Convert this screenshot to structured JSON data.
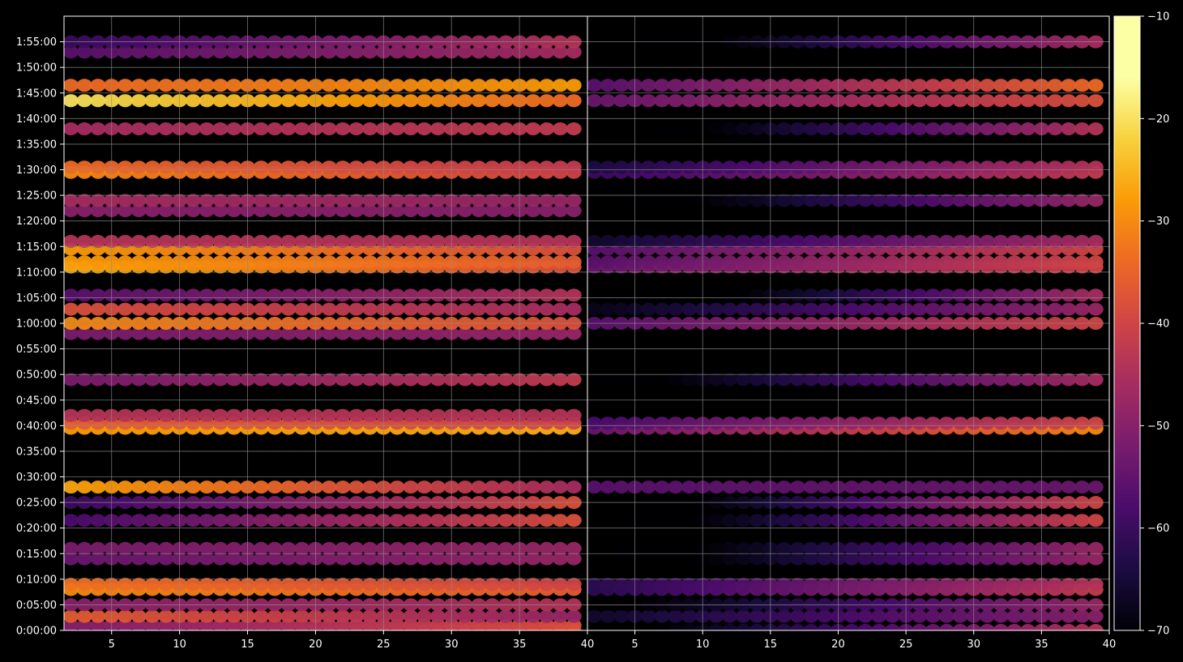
{
  "chart_data": [
    {
      "type": "heatmap",
      "panel": "left",
      "xlim": [
        1.5,
        40
      ],
      "x_ticks": [
        "5",
        "10",
        "15",
        "20",
        "25",
        "30",
        "35",
        "40"
      ],
      "ylim_seconds": [
        0,
        7200
      ],
      "y_ticks": [
        "0:00:00",
        "0:05:00",
        "0:10:00",
        "0:15:00",
        "0:20:00",
        "0:25:00",
        "0:30:00",
        "0:35:00",
        "0:40:00",
        "0:45:00",
        "0:50:00",
        "0:55:00",
        "1:00:00",
        "1:05:00",
        "1:10:00",
        "1:15:00",
        "1:20:00",
        "1:25:00",
        "1:30:00",
        "1:35:00",
        "1:40:00",
        "1:45:00",
        "1:50:00",
        "1:55:00"
      ],
      "grid": true,
      "x_columns": [
        2,
        3,
        4,
        5,
        6,
        7,
        8,
        9,
        10,
        11,
        12,
        13,
        14,
        15,
        16,
        17,
        18,
        19,
        20,
        21,
        22,
        23,
        24,
        25,
        26,
        27,
        28,
        29,
        30,
        31,
        32,
        33,
        34,
        35,
        36,
        37,
        38,
        39
      ],
      "rows": [
        {
          "time": "0:00:00",
          "start": -62,
          "end": -42
        },
        {
          "time": "0:01:00",
          "start": -50,
          "end": -38
        },
        {
          "time": "0:02:45",
          "start": -36,
          "end": -48
        },
        {
          "time": "0:05:00",
          "start": -50,
          "end": -44
        },
        {
          "time": "0:08:00",
          "start": -30,
          "end": -36
        },
        {
          "time": "0:09:00",
          "start": -33,
          "end": -40
        },
        {
          "time": "0:14:00",
          "start": -54,
          "end": -48
        },
        {
          "time": "0:16:00",
          "start": -52,
          "end": -48
        },
        {
          "time": "0:21:30",
          "start": -58,
          "end": -38
        },
        {
          "time": "0:25:00",
          "start": -60,
          "end": -38
        },
        {
          "time": "0:28:00",
          "start": -27,
          "end": -46
        },
        {
          "time": "0:39:30",
          "start": -28,
          "end": -26
        },
        {
          "time": "0:40:30",
          "start": -36,
          "end": -40
        },
        {
          "time": "0:42:00",
          "start": -44,
          "end": -44
        },
        {
          "time": "0:49:00",
          "start": -52,
          "end": -42
        },
        {
          "time": "0:58:00",
          "start": -52,
          "end": -48
        },
        {
          "time": "1:00:00",
          "start": -30,
          "end": -38
        },
        {
          "time": "1:02:45",
          "start": -38,
          "end": -46
        },
        {
          "time": "1:05:30",
          "start": -56,
          "end": -44
        },
        {
          "time": "1:11:00",
          "start": -26,
          "end": -38
        },
        {
          "time": "1:12:00",
          "start": -28,
          "end": -36
        },
        {
          "time": "1:14:30",
          "start": -28,
          "end": -38
        },
        {
          "time": "1:16:00",
          "start": -44,
          "end": -44
        },
        {
          "time": "1:22:00",
          "start": -50,
          "end": -50
        },
        {
          "time": "1:24:00",
          "start": -46,
          "end": -48
        },
        {
          "time": "1:29:30",
          "start": -30,
          "end": -40
        },
        {
          "time": "1:30:30",
          "start": -34,
          "end": -42
        },
        {
          "time": "1:38:00",
          "start": -46,
          "end": -42
        },
        {
          "time": "1:43:30",
          "start": -20,
          "end": -34
        },
        {
          "time": "1:46:30",
          "start": -34,
          "end": -28
        },
        {
          "time": "1:53:00",
          "start": -56,
          "end": -46
        },
        {
          "time": "1:55:00",
          "start": -60,
          "end": -44
        }
      ]
    },
    {
      "type": "heatmap",
      "panel": "right",
      "xlim": [
        1.5,
        40
      ],
      "x_ticks": [
        "40",
        "5",
        "10",
        "15",
        "20",
        "25",
        "30",
        "35",
        "40"
      ],
      "ylim_seconds": [
        0,
        7200
      ],
      "grid": true,
      "x_columns": [
        2,
        3,
        4,
        5,
        6,
        7,
        8,
        9,
        10,
        11,
        12,
        13,
        14,
        15,
        16,
        17,
        18,
        19,
        20,
        21,
        22,
        23,
        24,
        25,
        26,
        27,
        28,
        29,
        30,
        31,
        32,
        33,
        34,
        35,
        36,
        37,
        38,
        39
      ],
      "rows": [
        {
          "time": "0:00:00",
          "start": -74,
          "end": -44
        },
        {
          "time": "0:02:45",
          "start": -66,
          "end": -50
        },
        {
          "time": "0:05:00",
          "start": -72,
          "end": -48
        },
        {
          "time": "0:08:00",
          "start": -62,
          "end": -42
        },
        {
          "time": "0:09:00",
          "start": -62,
          "end": -44
        },
        {
          "time": "0:14:00",
          "start": -76,
          "end": -48
        },
        {
          "time": "0:16:00",
          "start": -76,
          "end": -48
        },
        {
          "time": "0:21:30",
          "start": -78,
          "end": -40
        },
        {
          "time": "0:25:00",
          "start": -78,
          "end": -40
        },
        {
          "time": "0:28:00",
          "start": -56,
          "end": -54
        },
        {
          "time": "0:39:30",
          "start": -54,
          "end": -30
        },
        {
          "time": "0:40:30",
          "start": -58,
          "end": -40
        },
        {
          "time": "0:49:00",
          "start": -74,
          "end": -46
        },
        {
          "time": "1:00:00",
          "start": -56,
          "end": -40
        },
        {
          "time": "1:02:45",
          "start": -68,
          "end": -48
        },
        {
          "time": "1:05:30",
          "start": -80,
          "end": -46
        },
        {
          "time": "1:11:00",
          "start": -54,
          "end": -40
        },
        {
          "time": "1:12:00",
          "start": -56,
          "end": -40
        },
        {
          "time": "1:14:30",
          "start": -56,
          "end": -40
        },
        {
          "time": "1:16:00",
          "start": -66,
          "end": -46
        },
        {
          "time": "1:24:00",
          "start": -76,
          "end": -48
        },
        {
          "time": "1:29:30",
          "start": -60,
          "end": -42
        },
        {
          "time": "1:30:30",
          "start": -64,
          "end": -44
        },
        {
          "time": "1:38:00",
          "start": -78,
          "end": -44
        },
        {
          "time": "1:43:30",
          "start": -54,
          "end": -38
        },
        {
          "time": "1:46:30",
          "start": -56,
          "end": -34
        },
        {
          "time": "1:55:00",
          "start": -78,
          "end": -46
        }
      ]
    },
    {
      "type": "colorbar",
      "range": [
        -70,
        -10
      ],
      "ticks": [
        "−10",
        "−20",
        "−30",
        "−40",
        "−50",
        "−60",
        "−70"
      ],
      "tick_values": [
        -10,
        -20,
        -30,
        -40,
        -50,
        -60,
        -70
      ],
      "colormap": "inferno"
    }
  ],
  "colors": {
    "background": "#000000",
    "axes_face": "#000000",
    "spine": "#ffffff",
    "grid": "#8c8c8c",
    "text": "#ffffff"
  }
}
